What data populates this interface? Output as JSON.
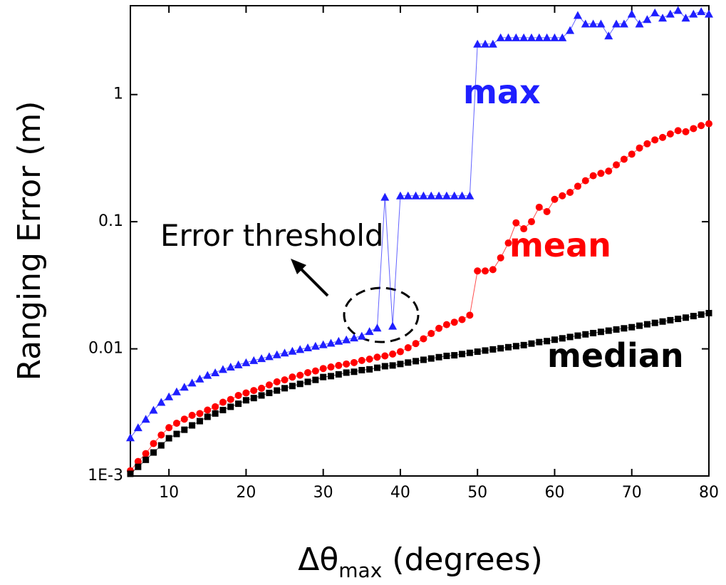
{
  "chart_data": {
    "type": "scatter",
    "yscale": "log",
    "xlabel": "Δθ",
    "xlabel_sub": "max",
    "xlabel_rest": " (degrees)",
    "ylabel": "Ranging Error (m)",
    "annotation": "Error threshold",
    "xlim": [
      5,
      80
    ],
    "xticks": [
      10,
      20,
      30,
      40,
      50,
      60,
      70,
      80
    ],
    "ylim": [
      0.001,
      5
    ],
    "yticks": [
      {
        "value": 0.001,
        "label": "1E-3"
      },
      0.01,
      0.1,
      1
    ],
    "x": [
      5,
      6,
      7,
      8,
      9,
      10,
      11,
      12,
      13,
      14,
      15,
      16,
      17,
      18,
      19,
      20,
      21,
      22,
      23,
      24,
      25,
      26,
      27,
      28,
      29,
      30,
      31,
      32,
      33,
      34,
      35,
      36,
      37,
      38,
      39,
      40,
      41,
      42,
      43,
      44,
      45,
      46,
      47,
      48,
      49,
      50,
      51,
      52,
      53,
      54,
      55,
      56,
      57,
      58,
      59,
      60,
      61,
      62,
      63,
      64,
      65,
      66,
      67,
      68,
      69,
      70,
      71,
      72,
      73,
      74,
      75,
      76,
      77,
      78,
      79,
      80
    ],
    "series": [
      {
        "name": "max",
        "color": "#1f1fff",
        "marker": "triangle",
        "values": [
          0.002,
          0.0024,
          0.0028,
          0.0033,
          0.0038,
          0.0042,
          0.0046,
          0.005,
          0.0054,
          0.0058,
          0.0062,
          0.0065,
          0.0069,
          0.0072,
          0.0075,
          0.0078,
          0.0081,
          0.0084,
          0.0087,
          0.009,
          0.0093,
          0.0096,
          0.0099,
          0.0102,
          0.0105,
          0.0108,
          0.0111,
          0.0115,
          0.0118,
          0.0122,
          0.0126,
          0.0137,
          0.0146,
          0.156,
          0.0151,
          0.16,
          0.16,
          0.16,
          0.16,
          0.16,
          0.16,
          0.16,
          0.16,
          0.16,
          0.16,
          2.5,
          2.5,
          2.5,
          2.8,
          2.8,
          2.8,
          2.8,
          2.8,
          2.8,
          2.8,
          2.8,
          2.8,
          3.2,
          4.2,
          3.6,
          3.6,
          3.6,
          2.9,
          3.6,
          3.6,
          4.3,
          3.6,
          3.9,
          4.4,
          4.0,
          4.3,
          4.6,
          4.0,
          4.3,
          4.5,
          4.3
        ]
      },
      {
        "name": "mean",
        "color": "#ff0000",
        "marker": "circle",
        "values": [
          0.0011,
          0.0013,
          0.0015,
          0.0018,
          0.0021,
          0.0024,
          0.0026,
          0.0028,
          0.003,
          0.0031,
          0.0033,
          0.0035,
          0.0038,
          0.004,
          0.0043,
          0.0045,
          0.0047,
          0.0049,
          0.0052,
          0.0055,
          0.0057,
          0.006,
          0.0062,
          0.0065,
          0.0067,
          0.007,
          0.0072,
          0.0074,
          0.0076,
          0.0078,
          0.0081,
          0.0083,
          0.0086,
          0.0088,
          0.0091,
          0.0095,
          0.0102,
          0.011,
          0.012,
          0.0132,
          0.0145,
          0.0155,
          0.0162,
          0.017,
          0.0184,
          0.041,
          0.041,
          0.042,
          0.052,
          0.068,
          0.098,
          0.088,
          0.1,
          0.13,
          0.12,
          0.15,
          0.16,
          0.17,
          0.19,
          0.21,
          0.23,
          0.24,
          0.25,
          0.28,
          0.31,
          0.34,
          0.38,
          0.41,
          0.44,
          0.46,
          0.49,
          0.52,
          0.51,
          0.54,
          0.57,
          0.59
        ]
      },
      {
        "name": "median",
        "color": "#000000",
        "marker": "square",
        "values": [
          0.00104,
          0.00118,
          0.00134,
          0.00153,
          0.00174,
          0.00198,
          0.00214,
          0.00231,
          0.0025,
          0.0027,
          0.00292,
          0.0031,
          0.0033,
          0.0035,
          0.0037,
          0.00394,
          0.0041,
          0.0043,
          0.0045,
          0.0047,
          0.0049,
          0.0051,
          0.0053,
          0.0055,
          0.0057,
          0.006,
          0.0061,
          0.0063,
          0.0065,
          0.0066,
          0.0068,
          0.0069,
          0.0071,
          0.0073,
          0.0074,
          0.0076,
          0.0078,
          0.008,
          0.0082,
          0.0084,
          0.0086,
          0.0088,
          0.0089,
          0.0091,
          0.0093,
          0.0095,
          0.0097,
          0.0099,
          0.0101,
          0.0103,
          0.0105,
          0.0107,
          0.011,
          0.0113,
          0.0115,
          0.0118,
          0.0121,
          0.0124,
          0.0127,
          0.013,
          0.0133,
          0.0136,
          0.0139,
          0.0142,
          0.0145,
          0.0148,
          0.0152,
          0.0156,
          0.016,
          0.0164,
          0.0168,
          0.0172,
          0.0176,
          0.0181,
          0.0186,
          0.0191
        ]
      }
    ]
  }
}
